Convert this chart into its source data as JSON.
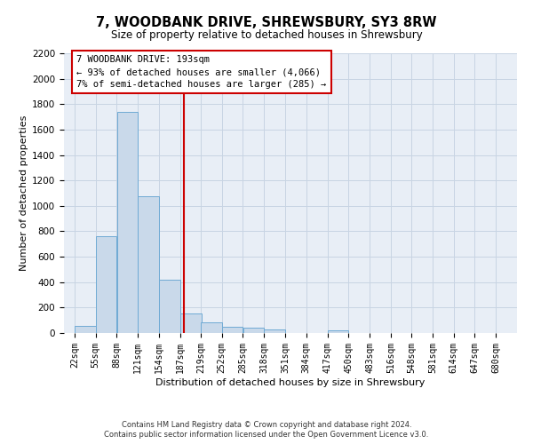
{
  "title": "7, WOODBANK DRIVE, SHREWSBURY, SY3 8RW",
  "subtitle": "Size of property relative to detached houses in Shrewsbury",
  "xlabel": "Distribution of detached houses by size in Shrewsbury",
  "ylabel": "Number of detached properties",
  "footnote1": "Contains HM Land Registry data © Crown copyright and database right 2024.",
  "footnote2": "Contains public sector information licensed under the Open Government Licence v3.0.",
  "bins": [
    22,
    55,
    88,
    121,
    154,
    187,
    219,
    252,
    285,
    318,
    351,
    384,
    417,
    450,
    483,
    516,
    548,
    581,
    614,
    647,
    680
  ],
  "bar_heights": [
    55,
    760,
    1740,
    1075,
    420,
    155,
    85,
    50,
    40,
    30,
    0,
    0,
    20,
    0,
    0,
    0,
    0,
    0,
    0,
    0
  ],
  "bar_color": "#c9d9ea",
  "bar_edgecolor": "#6faad4",
  "grid_color": "#c8d4e3",
  "bg_color": "#e8eef6",
  "subject_size": 193,
  "subject_line_color": "#cc0000",
  "annotation_line1": "7 WOODBANK DRIVE: 193sqm",
  "annotation_line2": "← 93% of detached houses are smaller (4,066)",
  "annotation_line3": "7% of semi-detached houses are larger (285) →",
  "annotation_box_color": "#cc0000",
  "ylim": [
    0,
    2200
  ],
  "yticks": [
    0,
    200,
    400,
    600,
    800,
    1000,
    1200,
    1400,
    1600,
    1800,
    2000,
    2200
  ],
  "title_fontsize": 10.5,
  "subtitle_fontsize": 8.5,
  "ylabel_fontsize": 8,
  "xlabel_fontsize": 8,
  "tick_fontsize": 7,
  "annot_fontsize": 7.5,
  "footnote_fontsize": 6
}
